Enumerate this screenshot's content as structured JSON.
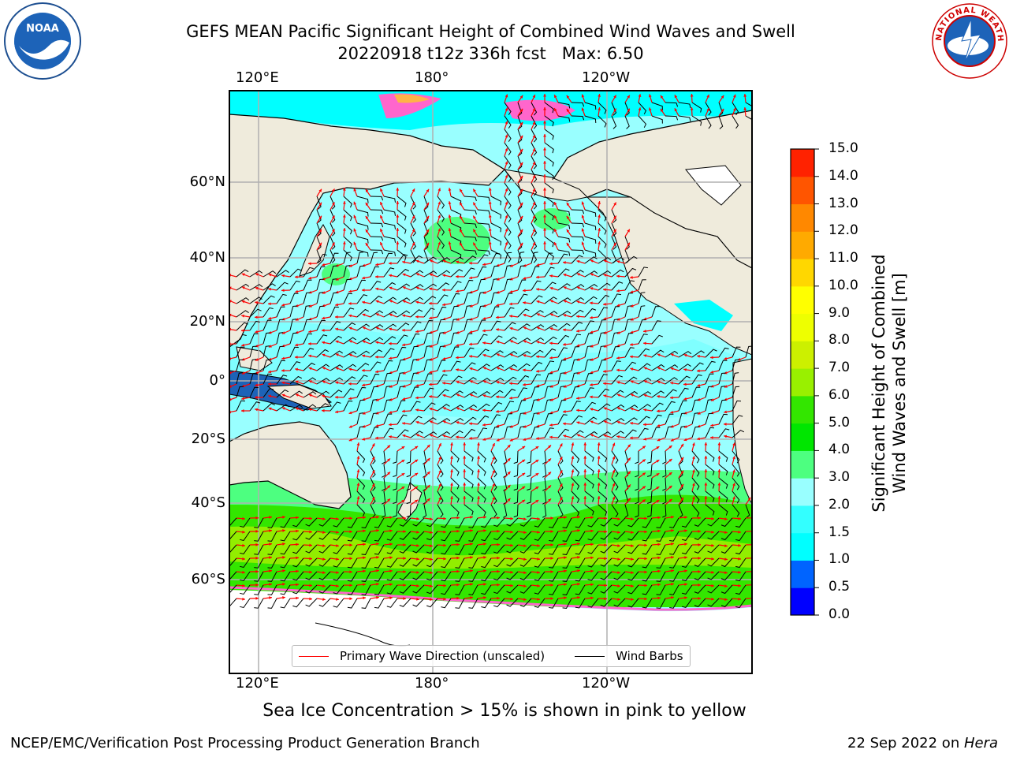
{
  "header": {
    "title_line1": "GEFS MEAN Pacific Significant Height of Combined Wind Waves and Swell",
    "title_line2": "20220918 t12z 336h fcst   Max: 6.50"
  },
  "logos": {
    "left": "noaa-logo",
    "right": "nws-logo",
    "noaa_text": "NOAA",
    "nws_text": "NATIONAL WEATHER SERVICE"
  },
  "map": {
    "lon_labels_top": [
      "120°E",
      "180°",
      "120°W"
    ],
    "lon_labels_bottom": [
      "120°E",
      "180°",
      "120°W"
    ],
    "lat_labels": [
      "60°N",
      "40°N",
      "20°N",
      "0°",
      "20°S",
      "40°S",
      "60°S"
    ],
    "colors": {
      "land": "#efebdc",
      "ice": "#ffffff",
      "wave_arrow": "#ff0000",
      "wind_barb": "#000000"
    },
    "legend": {
      "wave_direction": "Primary Wave Direction (unscaled)",
      "wind_barbs": "Wind Barbs"
    }
  },
  "colorbar": {
    "title_line1": "Significant Height of Combined",
    "title_line2": "Wind Waves and Swell [m]",
    "ticks": [
      "0.0",
      "0.5",
      "1.0",
      "1.5",
      "2.0",
      "3.0",
      "4.0",
      "5.0",
      "6.0",
      "7.0",
      "8.0",
      "9.0",
      "10.0",
      "11.0",
      "12.0",
      "13.0",
      "14.0",
      "15.0"
    ],
    "colors": [
      "#0000ff",
      "#0064ff",
      "#00ffff",
      "#33ffff",
      "#99ffff",
      "#4dff80",
      "#00e600",
      "#33e600",
      "#99f000",
      "#ccf000",
      "#eeff00",
      "#ffff00",
      "#ffd700",
      "#ffaa00",
      "#ff8800",
      "#ff5500",
      "#ff2200"
    ]
  },
  "caption": "Sea Ice Concentration > 15% is shown in pink to yellow",
  "footer": {
    "left": "NCEP/EMC/Verification Post Processing Product Generation Branch",
    "right_prefix": "22 Sep 2022 on ",
    "right_machine": "Hera"
  }
}
